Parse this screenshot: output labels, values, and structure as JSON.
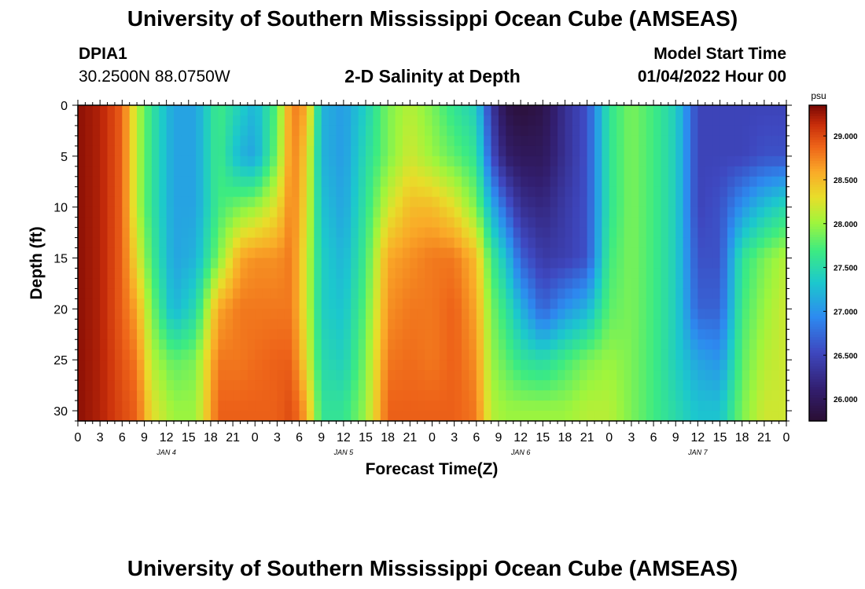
{
  "header": {
    "title": "University of Southern Mississippi Ocean Cube (AMSEAS)",
    "station_id": "DPIA1",
    "coordinates": "30.2500N  88.0750W",
    "subtitle": "2-D Salinity at Depth",
    "model_start_label": "Model Start Time",
    "model_start_value": "01/04/2022 Hour 00"
  },
  "footer": {
    "title": "University of Southern Mississippi Ocean Cube (AMSEAS)"
  },
  "chart_data": {
    "type": "heatmap",
    "title": "2-D Salinity at Depth",
    "xlabel": "Forecast Time(Z)",
    "ylabel": "Depth (ft)",
    "x_range_hours": [
      0,
      96
    ],
    "x_tick_hours": [
      0,
      3,
      6,
      9,
      12,
      15,
      18,
      21,
      24,
      27,
      30,
      33,
      36,
      39,
      42,
      45,
      48,
      51,
      54,
      57,
      60,
      63,
      66,
      69,
      72,
      75,
      78,
      81,
      84,
      87,
      90,
      93,
      96
    ],
    "x_tick_labels": [
      "0",
      "3",
      "6",
      "9",
      "12",
      "15",
      "18",
      "21",
      "0",
      "3",
      "6",
      "9",
      "12",
      "15",
      "18",
      "21",
      "0",
      "3",
      "6",
      "9",
      "12",
      "15",
      "18",
      "21",
      "0",
      "3",
      "6",
      "9",
      "12",
      "15",
      "18",
      "21",
      "0"
    ],
    "day_labels": [
      {
        "label": "JAN 4",
        "hour": 12
      },
      {
        "label": "JAN 5",
        "hour": 36
      },
      {
        "label": "JAN 6",
        "hour": 60
      },
      {
        "label": "JAN 7",
        "hour": 84
      }
    ],
    "y_range_ft": [
      0,
      31
    ],
    "y_ticks": [
      0,
      5,
      10,
      15,
      20,
      25,
      30
    ],
    "colorbar": {
      "unit": "psu",
      "range": [
        25.75,
        29.35
      ],
      "ticks": [
        26.0,
        26.5,
        27.0,
        27.5,
        28.0,
        28.5,
        29.0
      ],
      "tick_labels": [
        "26.000",
        "26.500",
        "27.000",
        "27.500",
        "28.000",
        "28.500",
        "29.000"
      ]
    },
    "salinity_profiles": {
      "note": "Approximate salinity (psu) read from colors at depths 0, 5, 10, 15, 20, 25, 30 ft",
      "depths_ft": [
        0,
        5,
        10,
        15,
        20,
        25,
        30
      ],
      "hours": [
        0,
        3,
        6,
        8,
        10,
        13,
        16,
        19,
        22,
        24,
        27,
        29,
        31,
        33,
        36,
        39,
        42,
        45,
        48,
        51,
        54,
        56,
        58,
        60,
        63,
        66,
        69,
        72,
        75,
        78,
        81,
        84,
        87,
        90,
        93,
        96
      ],
      "values": [
        [
          29.3,
          29.3,
          29.3,
          29.3,
          29.3,
          29.3,
          29.3
        ],
        [
          29.2,
          29.2,
          29.2,
          29.2,
          29.2,
          29.2,
          29.2
        ],
        [
          28.9,
          28.9,
          28.9,
          28.9,
          28.9,
          28.95,
          29.0
        ],
        [
          28.1,
          28.1,
          28.1,
          28.3,
          28.6,
          28.8,
          28.9
        ],
        [
          27.6,
          27.6,
          27.6,
          27.7,
          27.9,
          28.1,
          28.3
        ],
        [
          27.1,
          27.1,
          27.1,
          27.1,
          27.2,
          27.8,
          28.0
        ],
        [
          27.1,
          27.1,
          27.1,
          27.2,
          27.5,
          27.9,
          28.0
        ],
        [
          27.7,
          27.7,
          27.7,
          27.9,
          28.6,
          28.8,
          28.9
        ],
        [
          27.4,
          27.2,
          27.9,
          28.6,
          28.8,
          28.8,
          28.9
        ],
        [
          27.2,
          27.1,
          28.0,
          28.7,
          28.8,
          28.85,
          28.9
        ],
        [
          27.8,
          27.9,
          28.3,
          28.7,
          28.8,
          28.9,
          28.9
        ],
        [
          28.8,
          28.8,
          28.8,
          28.8,
          28.8,
          28.9,
          29.0
        ],
        [
          28.6,
          28.4,
          28.3,
          28.2,
          28.2,
          28.3,
          28.6
        ],
        [
          27.2,
          27.2,
          27.3,
          27.4,
          27.4,
          27.5,
          27.6
        ],
        [
          27.05,
          27.05,
          27.1,
          27.2,
          27.3,
          27.4,
          27.6
        ],
        [
          27.4,
          27.5,
          27.6,
          27.7,
          27.8,
          27.9,
          28.0
        ],
        [
          27.9,
          27.9,
          28.2,
          28.6,
          28.7,
          28.8,
          28.9
        ],
        [
          28.1,
          28.2,
          28.5,
          28.7,
          28.8,
          28.85,
          28.9
        ],
        [
          27.9,
          28.0,
          28.5,
          28.8,
          28.8,
          28.8,
          28.9
        ],
        [
          27.6,
          27.8,
          28.3,
          28.8,
          28.9,
          28.9,
          28.9
        ],
        [
          27.4,
          27.6,
          27.9,
          28.5,
          28.6,
          28.7,
          28.8
        ],
        [
          26.4,
          26.6,
          27.2,
          27.7,
          27.9,
          28.0,
          28.1
        ],
        [
          25.9,
          26.1,
          26.7,
          27.3,
          27.6,
          27.8,
          28.0
        ],
        [
          25.8,
          26.0,
          26.3,
          26.7,
          27.2,
          27.6,
          28.0
        ],
        [
          25.9,
          26.0,
          26.2,
          26.4,
          26.7,
          27.5,
          28.0
        ],
        [
          26.3,
          26.3,
          26.4,
          26.45,
          27.0,
          27.7,
          28.0
        ],
        [
          26.6,
          26.6,
          26.6,
          26.6,
          27.2,
          27.9,
          28.1
        ],
        [
          27.6,
          27.6,
          27.6,
          27.7,
          27.8,
          28.0,
          28.1
        ],
        [
          27.9,
          27.9,
          27.9,
          27.9,
          27.9,
          27.9,
          27.9
        ],
        [
          27.7,
          27.7,
          27.7,
          27.7,
          27.7,
          27.7,
          27.7
        ],
        [
          27.4,
          27.4,
          27.4,
          27.4,
          27.4,
          27.4,
          27.5
        ],
        [
          26.5,
          26.5,
          26.5,
          26.6,
          26.7,
          27.1,
          27.3
        ],
        [
          26.5,
          26.5,
          26.6,
          26.6,
          26.7,
          27.0,
          27.3
        ],
        [
          26.5,
          26.5,
          27.0,
          27.6,
          27.7,
          27.8,
          27.9
        ],
        [
          26.5,
          26.6,
          27.3,
          27.9,
          28.0,
          28.1,
          28.2
        ],
        [
          26.5,
          26.6,
          27.5,
          28.1,
          28.2,
          28.2,
          28.2
        ]
      ]
    }
  }
}
